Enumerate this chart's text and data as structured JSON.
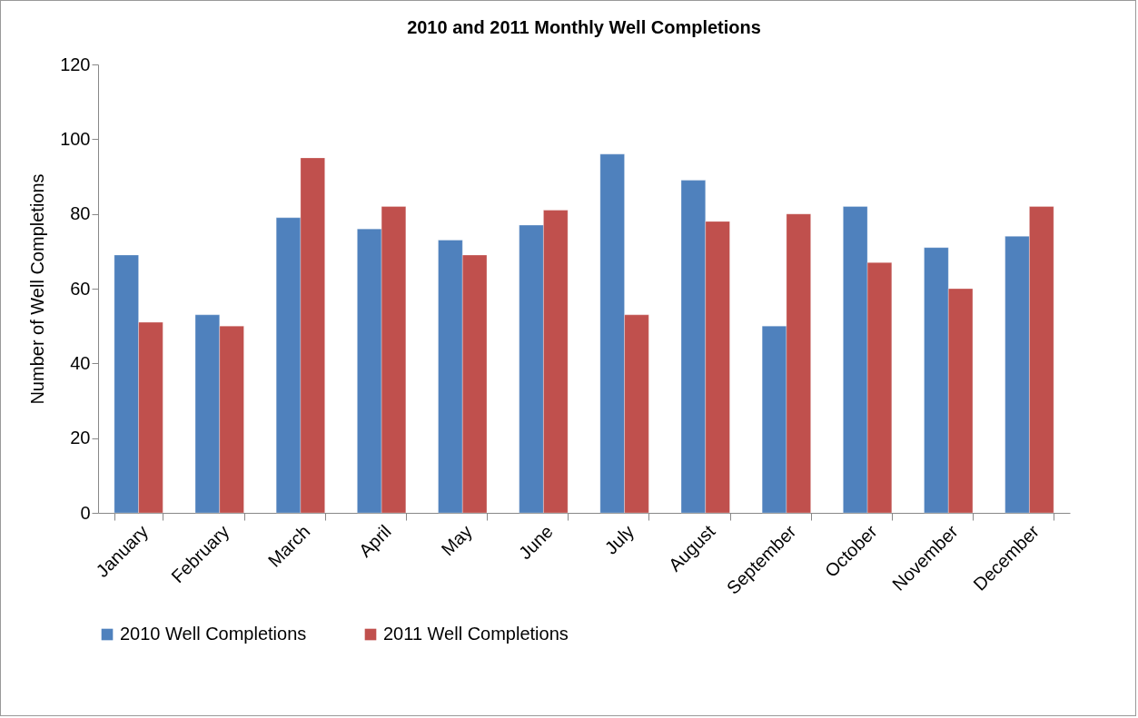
{
  "chart_data": {
    "type": "bar",
    "title": "2010 and 2011 Monthly Well Completions",
    "ylabel": "Number of Well Completions",
    "categories": [
      "January",
      "February",
      "March",
      "April",
      "May",
      "June",
      "July",
      "August",
      "September",
      "October",
      "November",
      "December"
    ],
    "series": [
      {
        "name": "2010 Well Completions",
        "color": "#4f81bd",
        "values": [
          69,
          53,
          79,
          76,
          73,
          77,
          96,
          89,
          50,
          82,
          71,
          74
        ]
      },
      {
        "name": "2011 Well Completions",
        "color": "#c0504d",
        "values": [
          51,
          50,
          95,
          82,
          69,
          81,
          53,
          78,
          80,
          67,
          60,
          82
        ]
      }
    ],
    "ylim": [
      0,
      120
    ],
    "yticks": [
      0,
      20,
      40,
      60,
      80,
      100,
      120
    ],
    "grid": false,
    "legend": "bottom"
  }
}
